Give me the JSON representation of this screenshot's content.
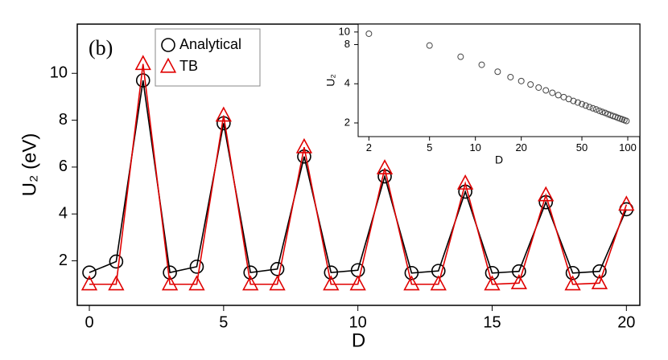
{
  "chart_data": [
    {
      "type": "line",
      "annotation": "(b)",
      "x_label": "D",
      "y_label": "U₂ (eV)",
      "x": [
        0,
        1,
        2,
        3,
        4,
        5,
        6,
        7,
        8,
        9,
        10,
        11,
        12,
        13,
        14,
        15,
        16,
        17,
        18,
        19,
        20
      ],
      "series": [
        {
          "name": "Analytical",
          "color": "#000000",
          "marker": "circle",
          "values": [
            1.5,
            1.97,
            9.7,
            1.5,
            1.75,
            7.87,
            1.5,
            1.65,
            6.45,
            1.5,
            1.6,
            5.6,
            1.48,
            1.57,
            4.95,
            1.48,
            1.55,
            4.5,
            1.48,
            1.55,
            4.2
          ]
        },
        {
          "name": "TB",
          "color": "#e00000",
          "marker": "triangle",
          "values": [
            1.0,
            1.0,
            10.4,
            1.0,
            1.0,
            8.2,
            1.0,
            1.0,
            6.85,
            1.0,
            1.0,
            5.95,
            1.0,
            1.0,
            5.3,
            1.0,
            1.05,
            4.8,
            1.0,
            1.05,
            4.4
          ]
        }
      ],
      "xlim": [
        -0.45,
        20.5
      ],
      "ylim": [
        0.1,
        12.1
      ],
      "xticks": [
        0,
        5,
        10,
        15,
        20
      ],
      "yticks": [
        2,
        4,
        6,
        8,
        10
      ],
      "legend": "upper left",
      "grid": false
    },
    {
      "type": "scatter",
      "x_label": "D",
      "y_label": "U₂",
      "log_x": true,
      "log_y": true,
      "color": "#444444",
      "marker": "circle",
      "x": [
        2,
        5,
        8,
        11,
        14,
        17,
        20,
        23,
        26,
        29,
        32,
        35,
        38,
        41,
        44,
        47,
        50,
        53,
        56,
        59,
        62,
        65,
        68,
        71,
        74,
        77,
        80,
        83,
        86,
        89,
        92,
        95,
        98
      ],
      "values": [
        9.7,
        7.87,
        6.45,
        5.6,
        4.95,
        4.5,
        4.2,
        3.95,
        3.74,
        3.56,
        3.41,
        3.27,
        3.16,
        3.05,
        2.95,
        2.87,
        2.79,
        2.72,
        2.65,
        2.59,
        2.54,
        2.48,
        2.43,
        2.39,
        2.34,
        2.3,
        2.26,
        2.23,
        2.19,
        2.16,
        2.13,
        2.1,
        2.07
      ],
      "xlim": [
        1.7,
        120
      ],
      "ylim": [
        1.57,
        11.5
      ],
      "xticks": [
        2,
        5,
        10,
        20,
        50,
        100
      ],
      "yticks": [
        2,
        4,
        8,
        10
      ],
      "grid": false
    }
  ]
}
